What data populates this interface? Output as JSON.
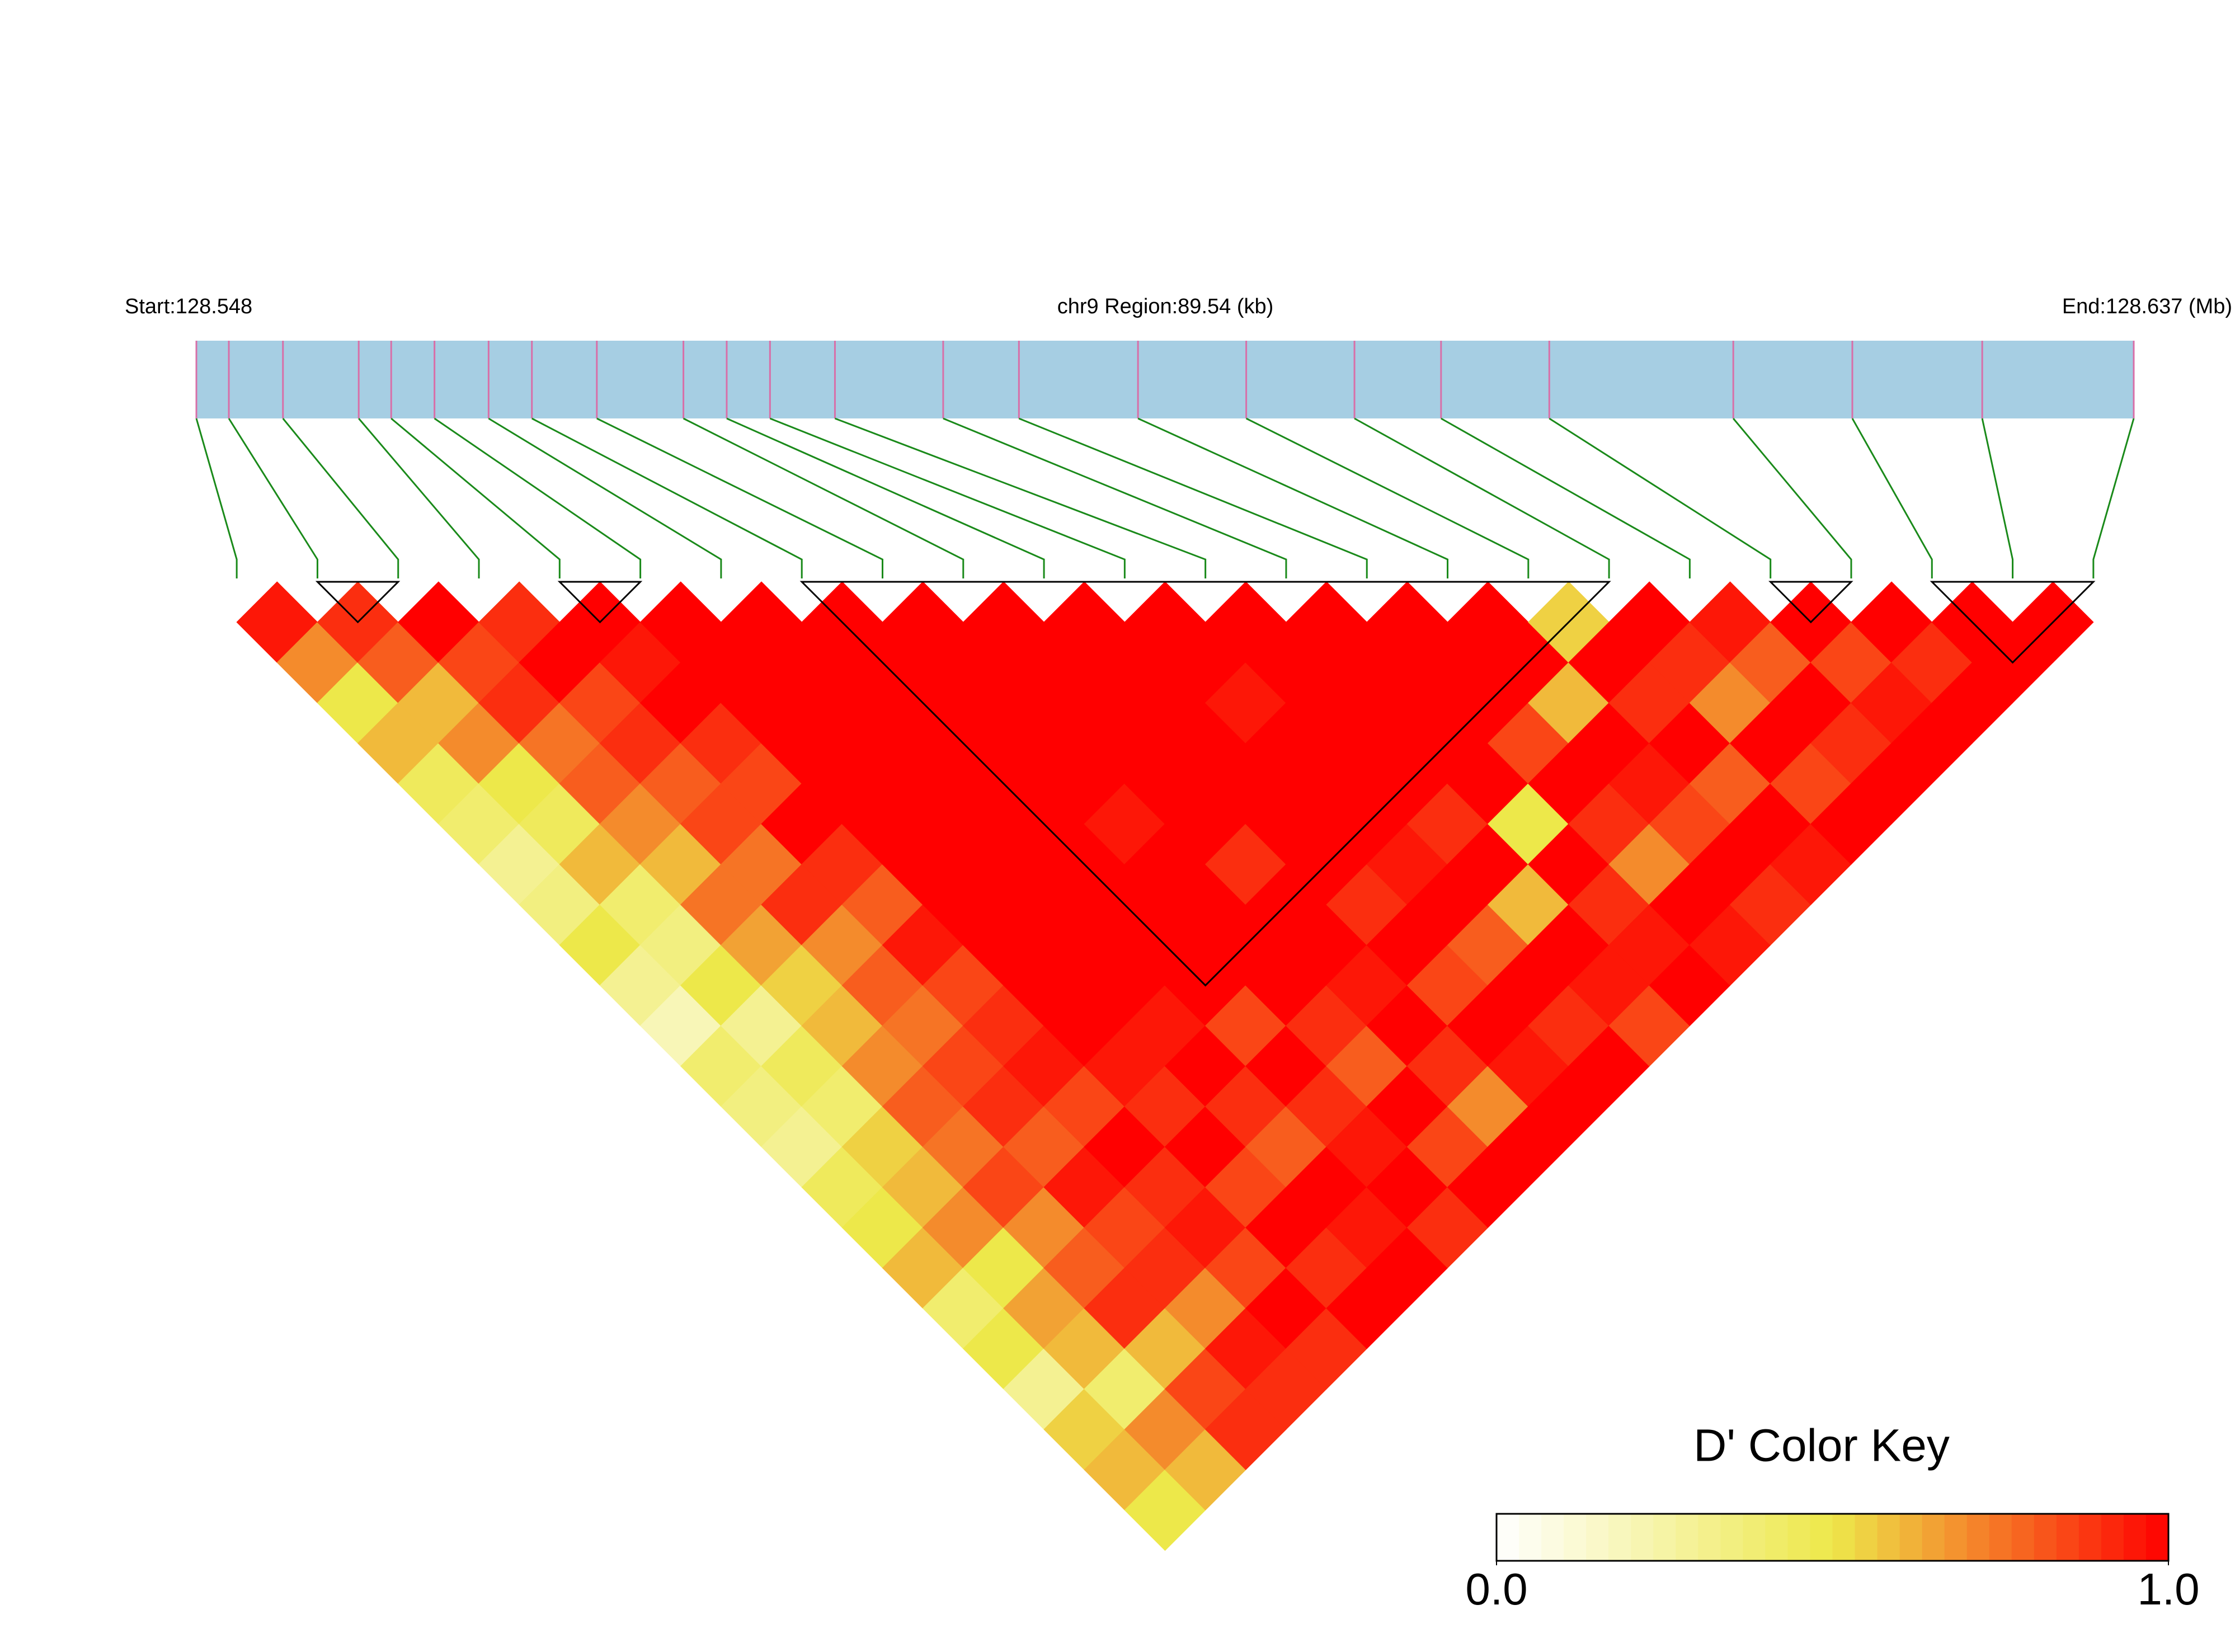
{
  "chart_data": {
    "type": "ld-heatmap",
    "start_label": "Start:128.548",
    "region_label": "chr9 Region:89.54 (kb)",
    "end_label": "End:128.637 (Mb)",
    "x": [
      128.548,
      128.5495,
      128.552,
      128.5555,
      128.557,
      128.559,
      128.5615,
      128.5635,
      128.5665,
      128.5705,
      128.5725,
      128.5745,
      128.5775,
      128.5825,
      128.586,
      128.5915,
      128.5965,
      128.6015,
      128.6055,
      128.6105,
      128.619,
      128.6245,
      128.6305,
      128.6375
    ],
    "xlim": [
      128.548,
      128.6375
    ],
    "bar_color": "#a6cee3",
    "snp_line_color": "#d86fa8",
    "connector_color": "#1a8a1a",
    "dprime": [
      [
        0.95,
        0.7,
        0.5,
        0.6,
        0.45,
        0.4,
        0.3,
        0.35,
        0.5,
        0.3,
        0.2,
        0.4,
        0.35,
        0.3,
        0.45,
        0.5,
        0.6,
        0.4,
        0.5,
        0.3,
        0.55,
        0.6,
        0.5
      ],
      [
        0.9,
        0.8,
        0.6,
        0.7,
        0.5,
        0.45,
        0.6,
        0.4,
        0.35,
        0.5,
        0.3,
        0.45,
        0.4,
        0.55,
        0.6,
        0.7,
        0.5,
        0.65,
        0.6,
        0.4,
        0.7,
        0.6
      ],
      [
        1,
        0.85,
        0.9,
        0.75,
        0.8,
        0.7,
        0.6,
        0.75,
        0.65,
        0.55,
        0.6,
        0.7,
        0.8,
        0.75,
        0.85,
        0.7,
        0.8,
        0.9,
        0.6,
        0.85,
        0.9
      ],
      [
        0.9,
        1,
        0.85,
        0.9,
        0.8,
        0.85,
        0.75,
        0.9,
        0.7,
        0.8,
        0.75,
        0.85,
        0.9,
        0.8,
        0.95,
        0.85,
        0.9,
        0.7,
        0.95,
        0.9
      ],
      [
        1,
        0.95,
        1,
        0.9,
        0.85,
        1,
        0.9,
        0.8,
        0.95,
        0.85,
        0.9,
        0.95,
        0.85,
        1,
        0.9,
        0.95,
        0.85,
        1,
        0.9
      ],
      [
        1,
        1,
        1,
        1,
        1,
        1,
        1,
        1,
        1,
        1,
        1,
        0.95,
        0.9,
        1,
        0.85,
        1,
        0.9,
        1
      ],
      [
        1,
        1,
        1,
        1,
        1,
        1,
        1,
        1,
        1,
        1,
        0.95,
        1,
        0.9,
        0.8,
        1,
        0.95,
        1
      ],
      [
        1,
        1,
        1,
        1,
        1,
        1,
        1,
        1,
        1,
        1,
        0.85,
        1,
        0.9,
        0.95,
        1,
        0.9
      ],
      [
        1,
        1,
        1,
        1,
        1,
        0.95,
        1,
        1,
        1,
        1,
        0.9,
        0.8,
        1,
        0.85,
        1
      ],
      [
        1,
        1,
        1,
        1,
        1,
        1,
        0.9,
        1,
        1,
        0.95,
        1,
        0.9,
        0.7,
        1
      ],
      [
        1,
        1,
        1,
        1,
        1,
        1,
        1,
        0.9,
        1,
        0.85,
        1,
        0.95,
        1
      ],
      [
        1,
        1,
        0.95,
        1,
        1,
        1,
        0.95,
        1,
        0.8,
        1,
        0.9,
        1
      ],
      [
        1,
        1,
        1,
        1,
        1,
        0.9,
        1,
        0.6,
        1,
        0.95,
        0.85
      ],
      [
        1,
        1,
        1,
        1,
        1,
        0.5,
        1,
        0.9,
        0.95,
        1
      ],
      [
        1,
        1,
        1,
        0.85,
        1,
        0.9,
        0.7,
        1,
        0.95
      ],
      [
        1,
        1,
        0.6,
        1,
        0.95,
        0.85,
        1,
        0.9
      ],
      [
        0.55,
        1,
        0.9,
        1,
        0.8,
        1,
        0.95
      ],
      [
        1,
        0.9,
        0.7,
        1,
        0.85,
        1
      ],
      [
        0.95,
        0.8,
        1,
        0.9,
        1
      ],
      [
        1,
        0.85,
        0.95,
        1
      ],
      [
        1,
        0.9,
        1
      ],
      [
        1,
        1
      ],
      [
        1
      ]
    ],
    "blocks": [
      [
        1,
        2
      ],
      [
        4,
        5
      ],
      [
        7,
        17
      ],
      [
        19,
        20
      ],
      [
        21,
        23
      ]
    ],
    "colorscale": [
      "#ffffff",
      "#ede84a",
      "#ff0000"
    ],
    "clim": [
      0,
      1
    ],
    "color_key_title": "D' Color Key",
    "color_key_ticks": [
      {
        "value": 0,
        "label": "0.0"
      },
      {
        "value": 1,
        "label": "1.0"
      }
    ]
  }
}
